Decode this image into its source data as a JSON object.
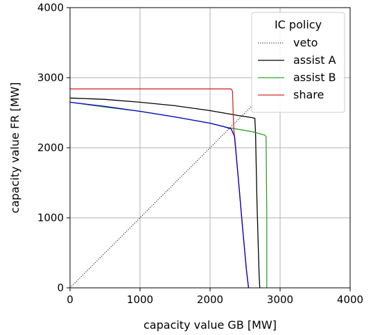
{
  "chart_data": {
    "type": "line",
    "xlabel": "capacity value GB [MW]",
    "ylabel": "capacity value FR [MW]",
    "xlim": [
      0,
      4000
    ],
    "ylim": [
      0,
      4000
    ],
    "xticks": [
      "0",
      "1000",
      "2000",
      "3000",
      "4000"
    ],
    "yticks": [
      "0",
      "1000",
      "2000",
      "3000",
      "4000"
    ],
    "grid": true,
    "legend": {
      "title": "IC policy",
      "placement": "top-right"
    },
    "series": [
      {
        "name": "veto",
        "color": "#000000",
        "style": "dotted",
        "x": [
          0,
          2620
        ],
        "y": [
          0,
          2620
        ]
      },
      {
        "name": "assist A",
        "color": "#000000",
        "style": "solid",
        "x": [
          0,
          500,
          1000,
          1500,
          2000,
          2400,
          2600,
          2640,
          2650,
          2670,
          2700,
          2710
        ],
        "y": [
          2710,
          2690,
          2650,
          2600,
          2530,
          2460,
          2430,
          2420,
          2200,
          1200,
          200,
          0
        ]
      },
      {
        "name": "assist B",
        "color": "#2ca02c",
        "style": "solid",
        "x": [
          0,
          500,
          1000,
          1500,
          2000,
          2250,
          2300,
          2600,
          2780,
          2800,
          2810,
          2810
        ],
        "y": [
          2650,
          2580,
          2520,
          2440,
          2350,
          2290,
          2280,
          2230,
          2180,
          2160,
          1000,
          0
        ]
      },
      {
        "name": "share",
        "color": "#d62728",
        "style": "solid",
        "x": [
          0,
          1000,
          2300,
          2320,
          2330,
          2340,
          2400,
          2460,
          2520,
          2550
        ],
        "y": [
          2840,
          2840,
          2840,
          2810,
          2500,
          2250,
          1600,
          900,
          250,
          0
        ]
      },
      {
        "name": "",
        "color": "#0000cc",
        "style": "solid",
        "x": [
          0,
          500,
          1000,
          1500,
          2000,
          2200,
          2300,
          2350,
          2400,
          2460,
          2520,
          2550
        ],
        "y": [
          2650,
          2590,
          2520,
          2440,
          2350,
          2300,
          2270,
          2160,
          1600,
          900,
          250,
          0
        ]
      }
    ]
  }
}
